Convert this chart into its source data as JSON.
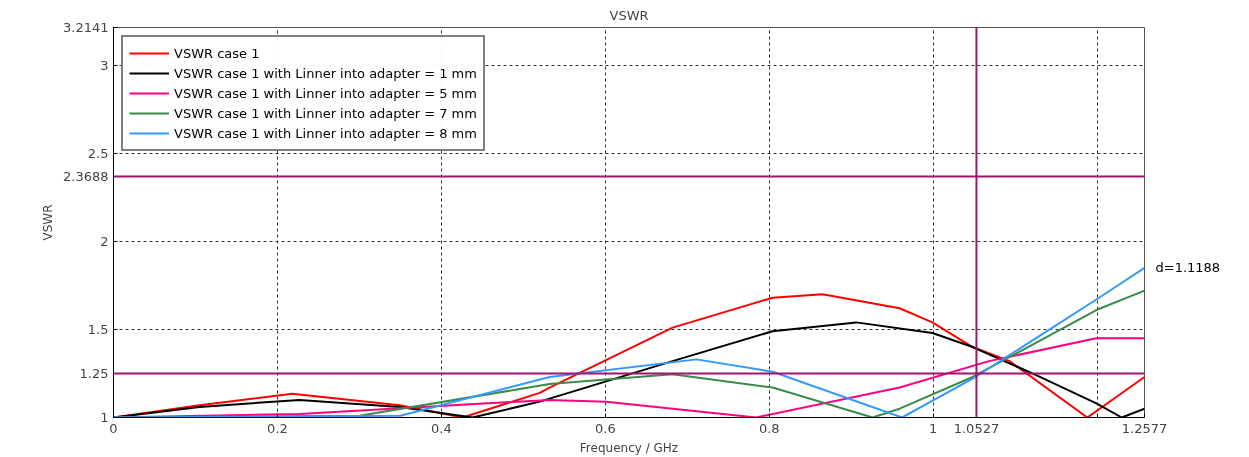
{
  "chart_data": {
    "type": "line",
    "title": "VSWR",
    "xlabel": "Frequency / GHz",
    "ylabel": "VSWR",
    "xlim": [
      0,
      1.2577
    ],
    "ylim": [
      1,
      3.2141
    ],
    "xticks": [
      0,
      0.2,
      0.4,
      0.6,
      0.8,
      1,
      {
        "value": 1.2,
        "label": null
      },
      1.2577
    ],
    "yticks": [
      1,
      1.5,
      2,
      2.5,
      3,
      3.2141
    ],
    "grid": true,
    "legend": "top left",
    "line_style": "solid",
    "marker": "none",
    "series": [
      {
        "name": "VSWR case 1",
        "color": "#ff0000",
        "x": [
          0,
          0.105,
          0.218,
          0.349,
          0.426,
          0.52,
          0.532,
          0.682,
          0.804,
          0.865,
          0.959,
          0.999,
          1.048,
          1.093,
          1.188,
          1.2577
        ],
        "values": [
          1,
          1.07,
          1.135,
          1.07,
          1.0,
          1.14,
          1.17,
          1.51,
          1.68,
          1.7,
          1.62,
          1.54,
          1.4,
          1.32,
          1.0,
          1.23
        ]
      },
      {
        "name": "VSWR case 1 with Linner into adapter = 1 mm",
        "color": "#000000",
        "x": [
          0,
          0.105,
          0.227,
          0.349,
          0.438,
          0.52,
          0.682,
          0.804,
          0.906,
          0.999,
          1.048,
          1.121,
          1.199,
          1.23,
          1.2577
        ],
        "values": [
          1,
          1.06,
          1.1,
          1.06,
          1.0,
          1.09,
          1.32,
          1.49,
          1.54,
          1.48,
          1.4,
          1.25,
          1.08,
          1.0,
          1.05
        ]
      },
      {
        "name": "VSWR case 1 with Linner into adapter = 5 mm",
        "color": "#ff0080",
        "x": [
          0,
          0.227,
          0.532,
          0.601,
          0.784,
          0.959,
          1.068,
          1.199,
          1.2577
        ],
        "values": [
          1,
          1.02,
          1.1,
          1.09,
          1.0,
          1.17,
          1.32,
          1.45,
          1.45
        ]
      },
      {
        "name": "VSWR case 1 with Linner into adapter = 7 mm",
        "color": "#3a8a4a",
        "x": [
          0,
          0.3,
          0.532,
          0.682,
          0.804,
          0.926,
          0.959,
          1.048,
          1.199,
          1.2577
        ],
        "values": [
          1,
          1.01,
          1.19,
          1.245,
          1.17,
          1.0,
          1.05,
          1.23,
          1.61,
          1.72
        ]
      },
      {
        "name": "VSWR case 1 with Linner into adapter = 8 mm",
        "color": "#3399ff",
        "x": [
          0,
          0.35,
          0.532,
          0.711,
          0.804,
          0.962,
          1.048,
          1.199,
          1.2577
        ],
        "values": [
          1,
          1.01,
          1.23,
          1.33,
          1.26,
          1.0,
          1.22,
          1.67,
          1.85
        ]
      }
    ],
    "ref_lines": [
      {
        "axis": "y",
        "value": 2.3688,
        "label": "2.3688",
        "color": "#a0136e"
      },
      {
        "axis": "y",
        "value": 1.25,
        "label": "1.25",
        "color": "#a0136e"
      },
      {
        "axis": "x",
        "value": 1.0527,
        "label": "1.0527",
        "color": "#a0136e"
      }
    ],
    "annotations": [
      "d=1.1188"
    ]
  }
}
